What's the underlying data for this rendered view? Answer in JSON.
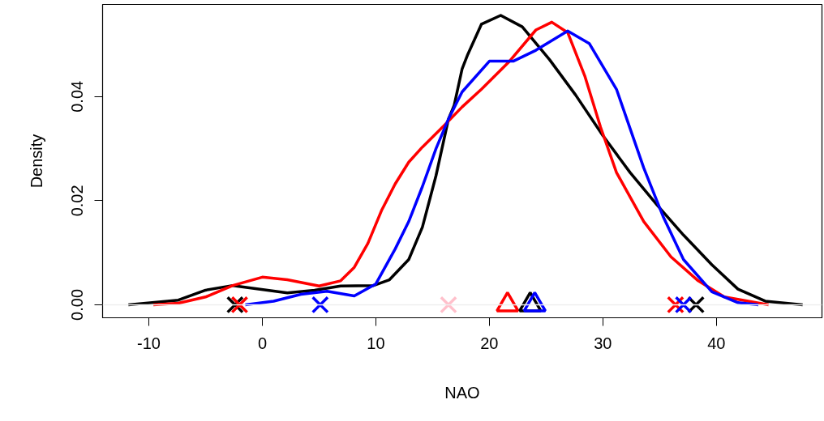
{
  "chart_data": {
    "type": "line",
    "xlabel": "NAO",
    "ylabel": "Density",
    "xlim": [
      -14.07,
      49.3
    ],
    "ylim": [
      -0.0025,
      0.0577
    ],
    "xticks": [
      {
        "value": -10,
        "label": "-10"
      },
      0,
      10,
      20,
      30,
      40
    ],
    "yticks": [
      {
        "value": 0,
        "label": "0.00"
      },
      {
        "value": 0.02,
        "label": "0.02"
      },
      {
        "value": 0.04,
        "label": "0.04"
      }
    ],
    "grid": false,
    "line_style": "solid",
    "ref_lines": [
      {
        "axis": "y",
        "value": 0,
        "color": "#eeeeee"
      }
    ],
    "series": [
      {
        "color": "#000000",
        "x": [
          -11.8,
          -7.4,
          -5.0,
          -2.6,
          -0.2,
          2.2,
          4.6,
          6.9,
          9.8,
          11.2,
          12.9,
          14.1,
          15.3,
          16.4,
          16.9,
          17.6,
          18.1,
          19.3,
          21.0,
          22.9,
          25.3,
          27.6,
          30.0,
          32.4,
          34.8,
          37.1,
          39.6,
          41.9,
          44.3,
          47.6
        ],
        "values": [
          0,
          0.0009,
          0.0028,
          0.0037,
          0.003,
          0.0023,
          0.0028,
          0.0036,
          0.0037,
          0.0048,
          0.0087,
          0.0149,
          0.0248,
          0.0357,
          0.0383,
          0.0453,
          0.0481,
          0.0539,
          0.0556,
          0.0534,
          0.0471,
          0.0403,
          0.0325,
          0.0254,
          0.0191,
          0.0134,
          0.0077,
          0.003,
          0.0007,
          0
        ]
      },
      {
        "color": "#ff0000",
        "x": [
          -9.6,
          -7.4,
          -5.0,
          -2.6,
          0.0,
          2.2,
          5.0,
          6.9,
          8.1,
          9.3,
          10.5,
          11.7,
          12.9,
          14.1,
          16.0,
          17.6,
          19.3,
          21.7,
          24.1,
          25.5,
          26.9,
          28.4,
          29.8,
          31.2,
          33.6,
          36.0,
          38.4,
          40.7,
          44.6
        ],
        "values": [
          0,
          0.0003,
          0.0015,
          0.0037,
          0.0053,
          0.0048,
          0.0036,
          0.0046,
          0.0072,
          0.0118,
          0.0181,
          0.0232,
          0.0274,
          0.0303,
          0.0344,
          0.038,
          0.0414,
          0.0466,
          0.0528,
          0.0543,
          0.0523,
          0.044,
          0.0341,
          0.0254,
          0.016,
          0.0092,
          0.0046,
          0.0015,
          0
        ]
      },
      {
        "color": "#0000ff",
        "x": [
          -1.5,
          1.0,
          3.4,
          5.7,
          8.1,
          10.0,
          11.7,
          12.9,
          14.1,
          15.3,
          16.4,
          17.6,
          20.0,
          22.1,
          24.1,
          26.9,
          28.8,
          31.2,
          33.6,
          35.3,
          37.1,
          39.6,
          41.9,
          43.7
        ],
        "values": [
          0,
          0.0007,
          0.002,
          0.0026,
          0.0017,
          0.004,
          0.0107,
          0.016,
          0.0227,
          0.03,
          0.0357,
          0.0409,
          0.0468,
          0.0468,
          0.0489,
          0.0526,
          0.0502,
          0.0414,
          0.0263,
          0.017,
          0.0087,
          0.0025,
          0.0004,
          0
        ]
      },
      {
        "type": "scatter",
        "marker": "cross",
        "color": "#000000",
        "x": [
          -2.4,
          38.2
        ],
        "values": [
          0,
          0
        ]
      },
      {
        "type": "scatter",
        "marker": "cross",
        "color": "#ff0000",
        "x": [
          -2.0,
          36.4
        ],
        "values": [
          0,
          0
        ]
      },
      {
        "type": "scatter",
        "marker": "cross",
        "color": "#0000ff",
        "x": [
          5.1,
          37.1
        ],
        "values": [
          0,
          0
        ]
      },
      {
        "type": "scatter",
        "marker": "cross",
        "color": "#ffc0cb",
        "x": [
          16.4
        ],
        "values": [
          0
        ]
      },
      {
        "type": "scatter",
        "marker": "triangle",
        "color": "#ff0000",
        "x": [
          21.6
        ],
        "values": [
          0
        ]
      },
      {
        "type": "scatter",
        "marker": "triangle",
        "color": "#000000",
        "x": [
          23.6
        ],
        "values": [
          0
        ]
      },
      {
        "type": "scatter",
        "marker": "triangle",
        "color": "#0000ff",
        "x": [
          24.0
        ],
        "values": [
          0
        ]
      }
    ]
  }
}
